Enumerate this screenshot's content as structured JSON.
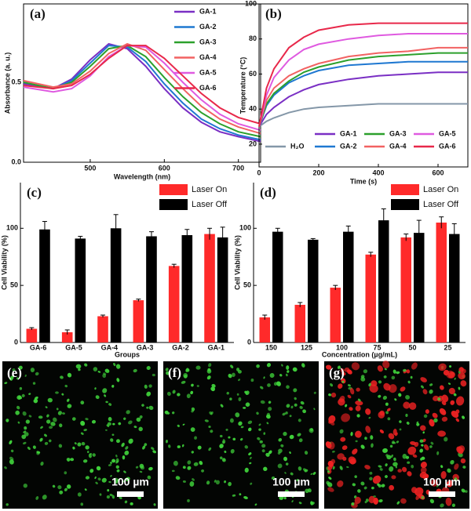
{
  "chart_data": [
    {
      "type": "line",
      "title": "(a)",
      "x_label": "Wavelength (nm)",
      "y_label": "Absorbance (a. u.)",
      "x": [
        410,
        450,
        475,
        500,
        525,
        550,
        575,
        600,
        625,
        650,
        675,
        700,
        730
      ],
      "series": [
        {
          "name": "GA-1",
          "color": "#7a2fc4",
          "values": [
            0.49,
            0.46,
            0.52,
            0.64,
            0.74,
            0.71,
            0.6,
            0.46,
            0.34,
            0.25,
            0.19,
            0.16,
            0.13
          ]
        },
        {
          "name": "GA-2",
          "color": "#1f78d1",
          "values": [
            0.5,
            0.46,
            0.51,
            0.62,
            0.73,
            0.72,
            0.63,
            0.49,
            0.37,
            0.27,
            0.21,
            0.17,
            0.14
          ]
        },
        {
          "name": "GA-3",
          "color": "#2ca02c",
          "values": [
            0.5,
            0.46,
            0.5,
            0.6,
            0.71,
            0.73,
            0.66,
            0.53,
            0.41,
            0.31,
            0.24,
            0.19,
            0.16
          ]
        },
        {
          "name": "GA-4",
          "color": "#f26262",
          "values": [
            0.51,
            0.47,
            0.49,
            0.57,
            0.68,
            0.74,
            0.7,
            0.58,
            0.46,
            0.35,
            0.27,
            0.22,
            0.18
          ]
        },
        {
          "name": "GA-5",
          "color": "#df5ae0",
          "values": [
            0.47,
            0.44,
            0.46,
            0.54,
            0.66,
            0.73,
            0.72,
            0.62,
            0.5,
            0.39,
            0.3,
            0.24,
            0.2
          ]
        },
        {
          "name": "GA-6",
          "color": "#e8284a",
          "values": [
            0.48,
            0.46,
            0.48,
            0.55,
            0.65,
            0.73,
            0.73,
            0.65,
            0.54,
            0.43,
            0.34,
            0.28,
            0.24
          ]
        }
      ],
      "xlim": [
        410,
        730
      ],
      "xticks": [
        500,
        600,
        700
      ],
      "ylim": [
        0,
        0.99
      ],
      "yticks": [
        {
          "value": 0,
          "label": "0.0"
        },
        {
          "value": 0.5,
          "label": "0.5"
        }
      ],
      "legend": "upper right"
    },
    {
      "type": "line",
      "title": "(b)",
      "x_label": "Time (s)",
      "y_label": "Temperature (°C)",
      "x": [
        0,
        25,
        50,
        100,
        150,
        200,
        300,
        400,
        500,
        600,
        700
      ],
      "series": [
        {
          "name": "H₂O",
          "color": "#8497a8",
          "values": [
            30,
            33,
            35,
            38,
            40,
            41,
            42,
            43,
            43,
            43,
            43
          ]
        },
        {
          "name": "GA-1",
          "color": "#7a2fc4",
          "values": [
            30,
            37,
            41,
            47,
            51,
            54,
            57,
            59,
            60,
            61,
            61
          ]
        },
        {
          "name": "GA-2",
          "color": "#1f78d1",
          "values": [
            30,
            42,
            48,
            55,
            59,
            62,
            65,
            66,
            67,
            67,
            67
          ]
        },
        {
          "name": "GA-3",
          "color": "#2ca02c",
          "values": [
            30,
            43,
            49,
            56,
            61,
            64,
            68,
            70,
            71,
            72,
            72
          ]
        },
        {
          "name": "GA-4",
          "color": "#f26262",
          "values": [
            30,
            45,
            52,
            59,
            63,
            66,
            70,
            72,
            73,
            75,
            75
          ]
        },
        {
          "name": "GA-5",
          "color": "#df5ae0",
          "values": [
            30,
            48,
            58,
            68,
            74,
            77,
            80,
            82,
            83,
            83,
            83
          ]
        },
        {
          "name": "GA-6",
          "color": "#e8284a",
          "values": [
            30,
            52,
            63,
            75,
            81,
            85,
            88,
            89,
            89,
            89,
            89
          ]
        }
      ],
      "xlim": [
        0,
        700
      ],
      "xticks": [
        0,
        200,
        400,
        600
      ],
      "ylim": [
        7,
        100
      ],
      "yticks": [
        20,
        40,
        60,
        80,
        100
      ],
      "legend": "lower right"
    },
    {
      "type": "bar",
      "title": "(c)",
      "x_label": "Groups",
      "y_label": "Cell Viability (%)",
      "categories": [
        "GA-6",
        "GA-5",
        "GA-4",
        "GA-3",
        "GA-2",
        "GA-1"
      ],
      "series": [
        {
          "name": "Laser On",
          "color": "#ff2a2a",
          "values": [
            12,
            9,
            23,
            37,
            67,
            95
          ],
          "errors": [
            1,
            2,
            1,
            1,
            1.5,
            5
          ]
        },
        {
          "name": "Laser Off",
          "color": "#000000",
          "values": [
            99,
            91,
            100,
            93,
            94,
            92
          ],
          "errors": [
            7,
            2,
            12,
            4,
            5,
            9
          ]
        }
      ],
      "ylim": [
        0,
        140
      ],
      "yticks": [
        0,
        50,
        100
      ],
      "legend": "upper right"
    },
    {
      "type": "bar",
      "title": "(d)",
      "x_label": "Concentration (µg/mL)",
      "y_label": "Cell Viability (%)",
      "categories": [
        "150",
        "125",
        "100",
        "75",
        "50",
        "25"
      ],
      "series": [
        {
          "name": "Laser On",
          "color": "#ff2a2a",
          "values": [
            22,
            33,
            48,
            77,
            92,
            105
          ],
          "errors": [
            2,
            2,
            2,
            2,
            3,
            5
          ]
        },
        {
          "name": "Laser Off",
          "color": "#000000",
          "values": [
            97,
            90,
            97,
            107,
            96,
            95
          ],
          "errors": [
            3,
            1,
            5,
            10,
            11,
            9
          ]
        }
      ],
      "ylim": [
        0,
        140
      ],
      "yticks": [
        0,
        50,
        100
      ],
      "legend": "upper right"
    }
  ],
  "images": [
    {
      "label": "(e)",
      "scale": "100 µm"
    },
    {
      "label": "(f)",
      "scale": "100 µm"
    },
    {
      "label": "(g)",
      "scale": "100 µm"
    }
  ]
}
